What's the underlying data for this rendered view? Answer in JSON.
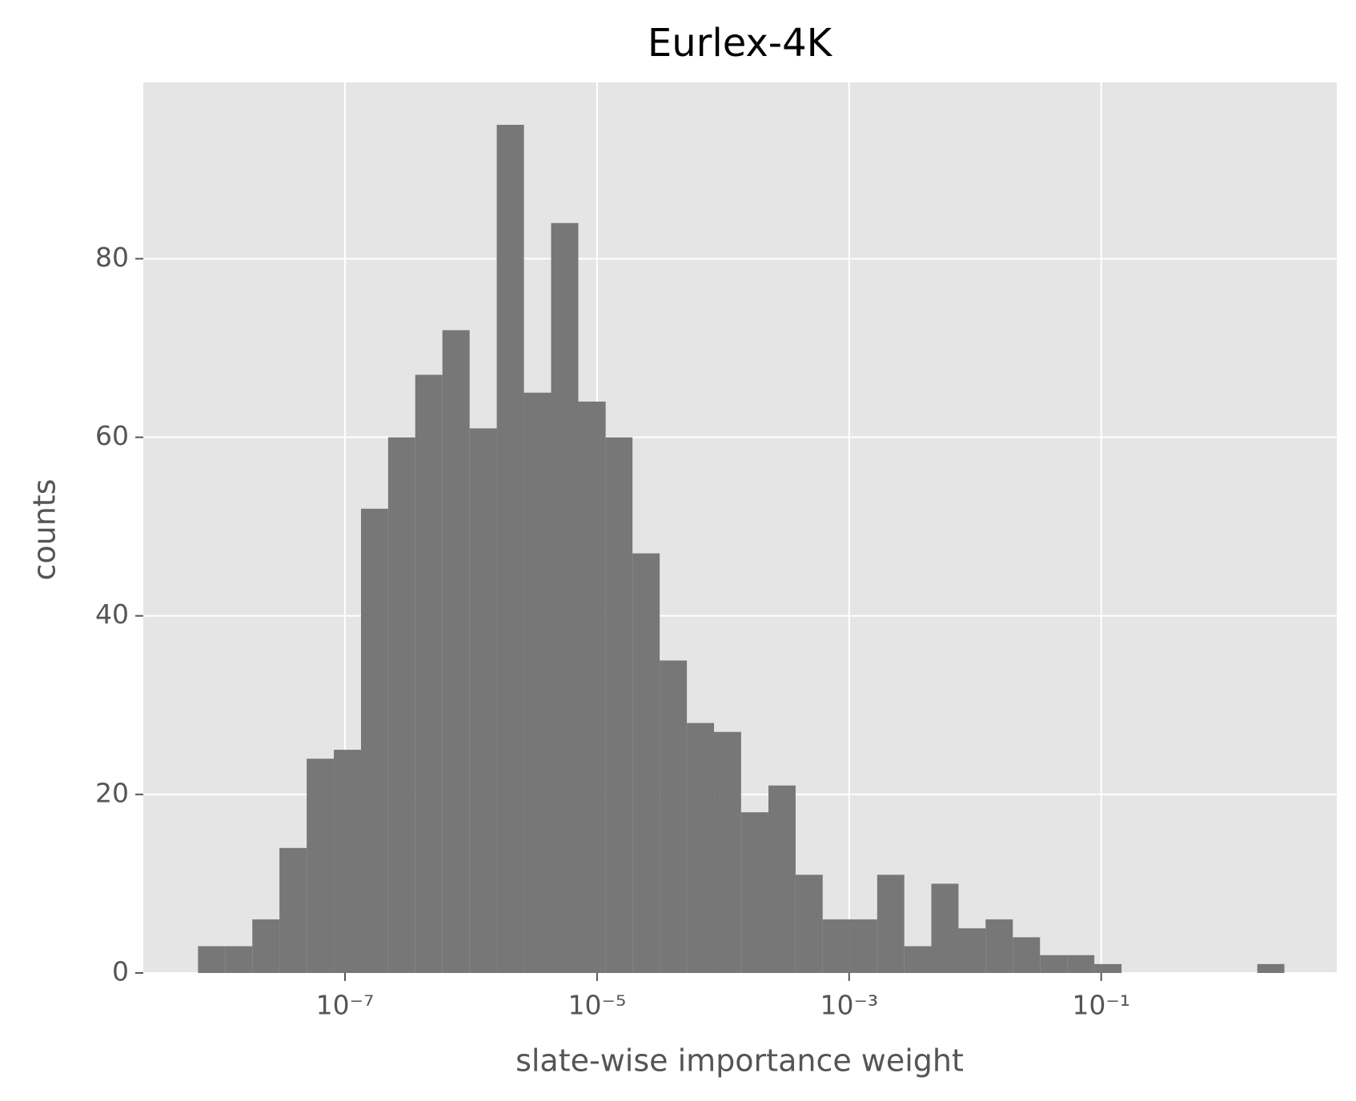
{
  "chart_data": {
    "type": "histogram",
    "title": "Eurlex-4K",
    "xlabel": "slate-wise importance weight",
    "ylabel": "counts",
    "xscale": "log",
    "grid": true,
    "color": "#777777",
    "bins": [
      6.82e-09,
      1.12e-08,
      1.84e-08,
      3.02e-08,
      4.97e-08,
      8.16e-08,
      1.34e-07,
      2.2e-07,
      3.61e-07,
      5.93e-07,
      9.75e-07,
      1.6e-06,
      2.63e-06,
      4.32e-06,
      7.1e-06,
      1.17e-05,
      1.91e-05,
      3.14e-05,
      5.16e-05,
      8.48e-05,
      0.000139,
      0.000229,
      0.000376,
      0.000617,
      0.00101,
      0.00167,
      0.00274,
      0.00449,
      0.00738,
      0.0121,
      0.0199,
      0.0327,
      0.0537,
      0.0882,
      0.145,
      0.238,
      0.391,
      0.642,
      1.054,
      1.732,
      2.84
    ],
    "values": [
      3,
      3,
      6,
      14,
      24,
      25,
      52,
      60,
      67,
      72,
      61,
      95,
      65,
      84,
      64,
      60,
      47,
      35,
      28,
      27,
      18,
      21,
      11,
      6,
      6,
      11,
      3,
      10,
      5,
      6,
      4,
      2,
      2,
      1,
      0,
      0,
      0,
      0,
      0,
      1
    ],
    "xlim": [
      2.51e-09,
      7.4
    ],
    "xticks": [
      {
        "value": 1e-07,
        "label": "10⁻⁷"
      },
      {
        "value": 1e-05,
        "label": "10⁻⁵"
      },
      {
        "value": 0.001,
        "label": "10⁻³"
      },
      {
        "value": 0.1,
        "label": "10⁻¹"
      }
    ],
    "ylim": [
      0,
      99.75
    ],
    "yticks": [
      0,
      20,
      40,
      60,
      80
    ]
  }
}
